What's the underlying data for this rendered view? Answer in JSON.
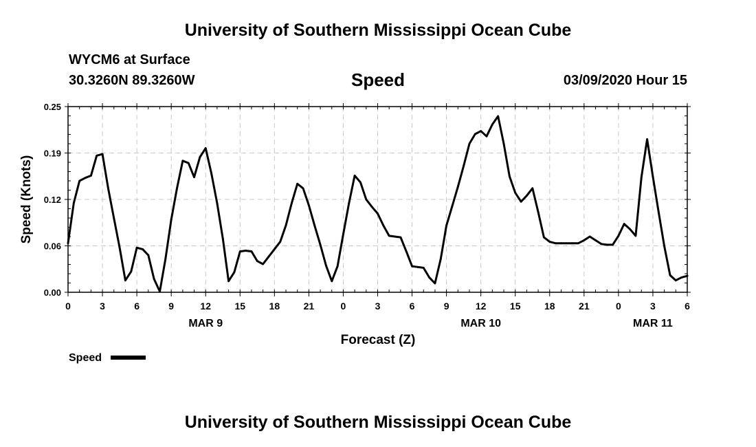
{
  "header": {
    "title": "University of Southern Mississippi Ocean Cube",
    "station": "WYCM6 at Surface",
    "coords": "30.3260N 89.3260W",
    "parameter": "Speed",
    "issued": "03/09/2020 Hour 15"
  },
  "footer": {
    "title": "University of Southern Mississippi Ocean Cube"
  },
  "chart_data": {
    "type": "line",
    "xlabel": "Forecast (Z)",
    "ylabel": "Speed (Knots)",
    "ylim": [
      0,
      0.25
    ],
    "xlim": [
      0,
      54
    ],
    "grid": true,
    "legend_position": "bottom-left",
    "y_ticks": [
      "0.00",
      "0.06",
      "0.12",
      "0.19",
      "0.25"
    ],
    "y_tick_values": [
      0,
      0.0625,
      0.125,
      0.1875,
      0.25
    ],
    "x_tick_labels": [
      "0",
      "3",
      "6",
      "9",
      "12",
      "15",
      "18",
      "21",
      "0",
      "3",
      "6",
      "9",
      "12",
      "15",
      "18",
      "21",
      "0",
      "3",
      "6"
    ],
    "day_labels": [
      {
        "label": "MAR 9",
        "at_hour": 12
      },
      {
        "label": "MAR 10",
        "at_hour": 36
      },
      {
        "label": "MAR 11",
        "at_hour": 51
      }
    ],
    "x_units": "forecast hours from 03/09/2020 00Z",
    "series": [
      {
        "name": "Speed",
        "color": "#000000",
        "points": [
          [
            0,
            0.066
          ],
          [
            0.5,
            0.12
          ],
          [
            1,
            0.15
          ],
          [
            1.5,
            0.154
          ],
          [
            2,
            0.157
          ],
          [
            2.5,
            0.184
          ],
          [
            3,
            0.186
          ],
          [
            3.5,
            0.14
          ],
          [
            4,
            0.1
          ],
          [
            4.5,
            0.06
          ],
          [
            5,
            0.016
          ],
          [
            5.5,
            0.028
          ],
          [
            6,
            0.06
          ],
          [
            6.5,
            0.058
          ],
          [
            7,
            0.05
          ],
          [
            7.5,
            0.018
          ],
          [
            8,
            0.001
          ],
          [
            8.5,
            0.045
          ],
          [
            9,
            0.098
          ],
          [
            9.5,
            0.14
          ],
          [
            10,
            0.177
          ],
          [
            10.5,
            0.174
          ],
          [
            11,
            0.155
          ],
          [
            11.5,
            0.182
          ],
          [
            12,
            0.194
          ],
          [
            12.5,
            0.16
          ],
          [
            13,
            0.12
          ],
          [
            13.5,
            0.072
          ],
          [
            14,
            0.015
          ],
          [
            14.5,
            0.027
          ],
          [
            15,
            0.055
          ],
          [
            15.5,
            0.056
          ],
          [
            16,
            0.055
          ],
          [
            16.5,
            0.042
          ],
          [
            17,
            0.038
          ],
          [
            17.5,
            0.048
          ],
          [
            18,
            0.058
          ],
          [
            18.5,
            0.068
          ],
          [
            19,
            0.09
          ],
          [
            19.5,
            0.12
          ],
          [
            20,
            0.146
          ],
          [
            20.5,
            0.14
          ],
          [
            21,
            0.117
          ],
          [
            21.5,
            0.09
          ],
          [
            22,
            0.064
          ],
          [
            22.5,
            0.036
          ],
          [
            23,
            0.015
          ],
          [
            23.5,
            0.035
          ],
          [
            24,
            0.078
          ],
          [
            24.5,
            0.12
          ],
          [
            25,
            0.157
          ],
          [
            25.5,
            0.148
          ],
          [
            26,
            0.125
          ],
          [
            26.5,
            0.115
          ],
          [
            27,
            0.106
          ],
          [
            27.5,
            0.09
          ],
          [
            28,
            0.076
          ],
          [
            28.5,
            0.075
          ],
          [
            29,
            0.074
          ],
          [
            29.5,
            0.055
          ],
          [
            30,
            0.035
          ],
          [
            30.5,
            0.034
          ],
          [
            31,
            0.033
          ],
          [
            31.5,
            0.02
          ],
          [
            32,
            0.012
          ],
          [
            32.5,
            0.045
          ],
          [
            33,
            0.09
          ],
          [
            33.5,
            0.116
          ],
          [
            34,
            0.142
          ],
          [
            34.5,
            0.17
          ],
          [
            35,
            0.2
          ],
          [
            35.5,
            0.213
          ],
          [
            36,
            0.217
          ],
          [
            36.5,
            0.21
          ],
          [
            37,
            0.226
          ],
          [
            37.5,
            0.237
          ],
          [
            38,
            0.2
          ],
          [
            38.5,
            0.156
          ],
          [
            39,
            0.134
          ],
          [
            39.5,
            0.122
          ],
          [
            40,
            0.13
          ],
          [
            40.5,
            0.14
          ],
          [
            41,
            0.108
          ],
          [
            41.5,
            0.074
          ],
          [
            42,
            0.068
          ],
          [
            42.5,
            0.066
          ],
          [
            43,
            0.066
          ],
          [
            44,
            0.066
          ],
          [
            44.5,
            0.066
          ],
          [
            45,
            0.07
          ],
          [
            45.5,
            0.075
          ],
          [
            46,
            0.07
          ],
          [
            46.5,
            0.065
          ],
          [
            47,
            0.064
          ],
          [
            47.5,
            0.064
          ],
          [
            48,
            0.076
          ],
          [
            48.5,
            0.092
          ],
          [
            49,
            0.085
          ],
          [
            49.5,
            0.076
          ],
          [
            50,
            0.155
          ],
          [
            50.5,
            0.206
          ],
          [
            51,
            0.156
          ],
          [
            51.5,
            0.108
          ],
          [
            52,
            0.062
          ],
          [
            52.5,
            0.023
          ],
          [
            53,
            0.016
          ],
          [
            53.5,
            0.02
          ],
          [
            54,
            0.022
          ]
        ]
      }
    ]
  }
}
